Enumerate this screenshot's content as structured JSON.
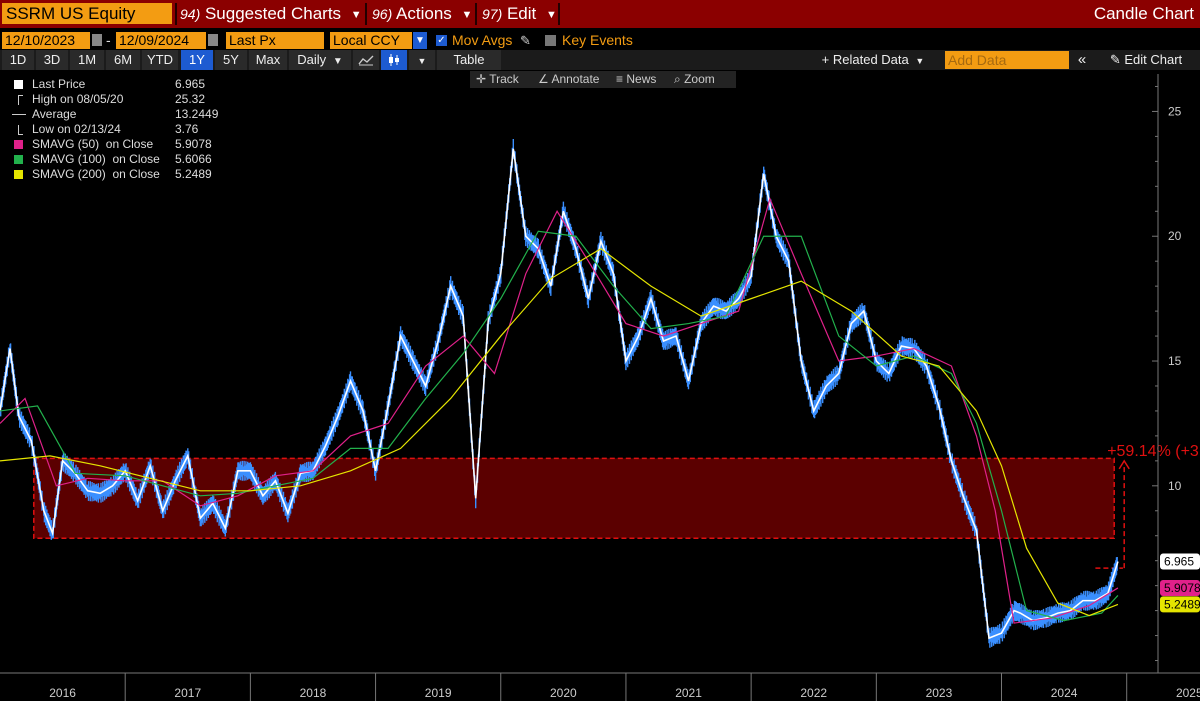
{
  "title_bar": {
    "security": "SSRM US Equity",
    "menu": [
      {
        "num": "94)",
        "label": "Suggested Charts"
      },
      {
        "num": "96)",
        "label": "Actions"
      },
      {
        "num": "97)",
        "label": "Edit"
      }
    ],
    "chart_type": "Candle Chart"
  },
  "params": {
    "start_date": "12/10/2023",
    "range_sep": "-",
    "end_date": "12/09/2024",
    "field": "Last Px",
    "currency": "Local CCY",
    "mov_avgs_label": "Mov Avgs",
    "key_events_label": "Key Events"
  },
  "toolbar": {
    "periods": [
      "1D",
      "3D",
      "1M",
      "6M",
      "YTD",
      "1Y",
      "5Y",
      "Max"
    ],
    "selected_period": "1Y",
    "frequency": "Daily",
    "table_label": "Table",
    "related_data_label": "+ Related Data",
    "add_data_placeholder": "Add Data",
    "edit_chart_label": "Edit Chart",
    "collapse_glyph": "«"
  },
  "subtools": {
    "track": "Track",
    "annotate": "Annotate",
    "news": "News",
    "zoom": "Zoom"
  },
  "legend": [
    {
      "label": "Last Price",
      "value": "6.965",
      "color": "#ffffff",
      "marker": "box"
    },
    {
      "label": "High on 08/05/20",
      "value": "25.32",
      "color": "#cccccc",
      "marker": "high"
    },
    {
      "label": "Average",
      "value": "13.2449",
      "color": "#cccccc",
      "marker": "avg"
    },
    {
      "label": "Low on 02/13/24",
      "value": "3.76",
      "color": "#cccccc",
      "marker": "low"
    },
    {
      "label": "SMAVG (50)  on Close",
      "value": "5.9078",
      "color": "#e0218a",
      "marker": "box"
    },
    {
      "label": "SMAVG (100)  on Close",
      "value": "5.6066",
      "color": "#22b14c",
      "marker": "box"
    },
    {
      "label": "SMAVG (200)  on Close",
      "value": "5.2489",
      "color": "#e5e500",
      "marker": "box"
    }
  ],
  "annotation": {
    "text": "+59.14% (+3",
    "zone_low": 7.9,
    "zone_high": 11.1,
    "arrow_from": 6.7,
    "arrow_to": 11.0,
    "color": "#e01010",
    "fill": "#6b0000"
  },
  "price_labels": [
    {
      "text": "6.965",
      "bg": "#ffffff",
      "fg": "#000000"
    },
    {
      "text": "5.9078",
      "bg": "#e0218a",
      "fg": "#000000"
    },
    {
      "text": "5.2489",
      "bg": "#e5e500",
      "fg": "#000000"
    }
  ],
  "chart_data": {
    "type": "line",
    "x_ticks": [
      "2016",
      "2017",
      "2018",
      "2019",
      "2020",
      "2021",
      "2022",
      "2023",
      "2024",
      "2025"
    ],
    "y_ticks": [
      25,
      20,
      15,
      10
    ],
    "ylim": [
      2.5,
      26.5
    ],
    "xlim": [
      2016.0,
      2025.25
    ],
    "grid": false,
    "series": [
      {
        "name": "Last Price",
        "color": "#ffffff",
        "accent": "#3a8fff",
        "x": [
          2016.0,
          2016.08,
          2016.15,
          2016.25,
          2016.35,
          2016.42,
          2016.5,
          2016.6,
          2016.7,
          2016.8,
          2016.9,
          2017.0,
          2017.1,
          2017.2,
          2017.3,
          2017.4,
          2017.5,
          2017.6,
          2017.7,
          2017.8,
          2017.9,
          2018.0,
          2018.1,
          2018.2,
          2018.3,
          2018.4,
          2018.5,
          2018.6,
          2018.7,
          2018.8,
          2018.9,
          2019.0,
          2019.1,
          2019.2,
          2019.3,
          2019.4,
          2019.5,
          2019.6,
          2019.7,
          2019.8,
          2019.9,
          2020.0,
          2020.1,
          2020.2,
          2020.3,
          2020.4,
          2020.5,
          2020.6,
          2020.7,
          2020.8,
          2020.9,
          2021.0,
          2021.1,
          2021.2,
          2021.3,
          2021.4,
          2021.5,
          2021.6,
          2021.7,
          2021.8,
          2021.9,
          2022.0,
          2022.1,
          2022.2,
          2022.3,
          2022.4,
          2022.5,
          2022.6,
          2022.7,
          2022.8,
          2022.9,
          2023.0,
          2023.1,
          2023.2,
          2023.3,
          2023.4,
          2023.5,
          2023.6,
          2023.7,
          2023.8,
          2023.9,
          2024.0,
          2024.1,
          2024.15,
          2024.25,
          2024.35,
          2024.45,
          2024.55,
          2024.65,
          2024.75,
          2024.85,
          2024.93
        ],
        "y": [
          13.0,
          15.5,
          12.8,
          11.8,
          9.0,
          8.1,
          11.0,
          10.5,
          9.8,
          9.7,
          10.0,
          10.6,
          9.4,
          10.8,
          9.0,
          10.2,
          11.2,
          8.7,
          9.3,
          8.3,
          10.6,
          10.6,
          9.6,
          10.2,
          8.9,
          10.5,
          10.6,
          11.6,
          12.8,
          14.2,
          13.0,
          10.6,
          13.2,
          16.0,
          15.0,
          14.0,
          15.8,
          18.0,
          16.8,
          9.5,
          16.6,
          18.5,
          23.5,
          20.0,
          19.5,
          18.0,
          21.0,
          19.5,
          17.5,
          19.8,
          18.5,
          15.0,
          16.0,
          17.5,
          15.8,
          16.0,
          14.2,
          16.5,
          17.2,
          17.0,
          17.5,
          18.4,
          22.5,
          20.0,
          19.0,
          15.0,
          13.0,
          14.0,
          14.5,
          16.5,
          17.0,
          15.0,
          14.5,
          15.6,
          15.5,
          14.8,
          13.2,
          11.0,
          9.5,
          8.2,
          3.9,
          4.1,
          5.0,
          4.9,
          4.6,
          4.7,
          4.9,
          5.0,
          5.4,
          5.4,
          5.7,
          6.965
        ]
      },
      {
        "name": "SMAVG (50)  on Close",
        "color": "#e0218a",
        "x": [
          2016.0,
          2016.2,
          2016.45,
          2016.7,
          2017.0,
          2017.3,
          2017.6,
          2017.9,
          2018.2,
          2018.5,
          2018.8,
          2019.1,
          2019.4,
          2019.7,
          2019.95,
          2020.2,
          2020.45,
          2020.7,
          2021.0,
          2021.3,
          2021.6,
          2021.9,
          2022.15,
          2022.4,
          2022.7,
          2023.0,
          2023.3,
          2023.6,
          2023.8,
          2023.95,
          2024.1,
          2024.4,
          2024.7,
          2024.93
        ],
        "y": [
          12.5,
          13.5,
          10.0,
          10.3,
          10.2,
          10.2,
          9.2,
          9.6,
          10.4,
          10.6,
          12.0,
          12.5,
          14.8,
          16.0,
          14.5,
          18.5,
          21.0,
          19.0,
          16.5,
          16.0,
          16.5,
          17.0,
          21.5,
          18.5,
          15.0,
          15.2,
          15.5,
          14.8,
          12.0,
          9.0,
          4.5,
          4.7,
          5.2,
          5.9078
        ]
      },
      {
        "name": "SMAVG (100)  on Close",
        "color": "#22b14c",
        "x": [
          2016.0,
          2016.3,
          2016.6,
          2017.0,
          2017.3,
          2017.6,
          2017.9,
          2018.2,
          2018.5,
          2018.8,
          2019.1,
          2019.4,
          2019.7,
          2020.0,
          2020.3,
          2020.6,
          2020.9,
          2021.2,
          2021.5,
          2021.8,
          2022.1,
          2022.4,
          2022.7,
          2023.0,
          2023.3,
          2023.6,
          2023.8,
          2024.0,
          2024.2,
          2024.5,
          2024.8,
          2024.93
        ],
        "y": [
          13.0,
          13.2,
          10.5,
          10.4,
          10.0,
          9.6,
          9.7,
          10.0,
          10.3,
          11.5,
          11.5,
          13.5,
          15.3,
          17.5,
          20.2,
          20.0,
          18.0,
          16.3,
          16.5,
          16.8,
          20.0,
          20.0,
          16.0,
          14.8,
          15.2,
          14.5,
          12.5,
          9.0,
          5.0,
          4.6,
          4.9,
          5.6066
        ]
      },
      {
        "name": "SMAVG (200)  on Close",
        "color": "#e5e500",
        "x": [
          2016.0,
          2016.4,
          2016.8,
          2017.2,
          2017.6,
          2018.0,
          2018.4,
          2018.8,
          2019.2,
          2019.6,
          2020.0,
          2020.4,
          2020.8,
          2021.2,
          2021.6,
          2022.0,
          2022.4,
          2022.8,
          2023.2,
          2023.5,
          2023.8,
          2024.0,
          2024.2,
          2024.45,
          2024.7,
          2024.93
        ],
        "y": [
          11.0,
          11.2,
          10.8,
          10.3,
          9.8,
          9.8,
          10.0,
          10.6,
          11.5,
          13.5,
          16.0,
          18.3,
          19.5,
          18.0,
          16.8,
          17.5,
          18.2,
          17.0,
          15.2,
          14.8,
          13.0,
          10.8,
          7.5,
          5.3,
          4.8,
          5.2489
        ]
      }
    ]
  }
}
